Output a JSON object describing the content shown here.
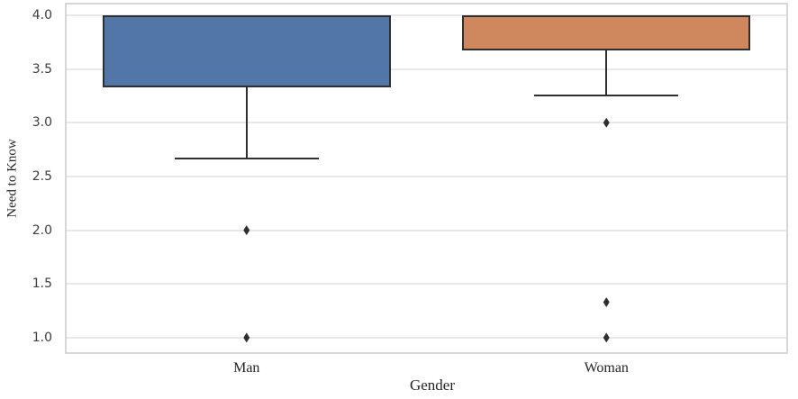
{
  "chart_data": {
    "type": "boxplot",
    "title": "",
    "xlabel": "Gender",
    "ylabel": "Need to Know",
    "categories": [
      "Man",
      "Woman"
    ],
    "yticks": [
      4.0,
      3.5,
      3.0,
      2.5,
      2.0,
      1.5,
      1.0
    ],
    "ytick_labels": [
      "4.0",
      "3.5",
      "3.0",
      "2.5",
      "2.0",
      "1.5",
      "1.0"
    ],
    "ylim": [
      0.865,
      4.1
    ],
    "grid": "horizontal-only",
    "legend": "none",
    "flier_marker": "thin-diamond",
    "box_width_fraction": 0.8,
    "cap_width_fraction": 0.4,
    "series": [
      {
        "name": "Man",
        "q1": 3.33,
        "median": 4.0,
        "q3": 4.0,
        "whisker_low": 2.67,
        "whisker_high": 4.0,
        "outliers": [
          2.0,
          1.0
        ],
        "fill_color": "#5276A8"
      },
      {
        "name": "Woman",
        "q1": 3.67,
        "median": 4.0,
        "q3": 4.0,
        "whisker_low": 3.25,
        "whisker_high": 4.0,
        "outliers": [
          3.0,
          1.33,
          1.0
        ],
        "fill_color": "#CF875D"
      }
    ],
    "colors": {
      "edge": "#2f2f2f",
      "grid": "#e8e8e8",
      "plot_border": "#d7d7d7",
      "tick_text": "#3d3d3d",
      "label_text": "#262626",
      "background": "#ffffff"
    }
  }
}
